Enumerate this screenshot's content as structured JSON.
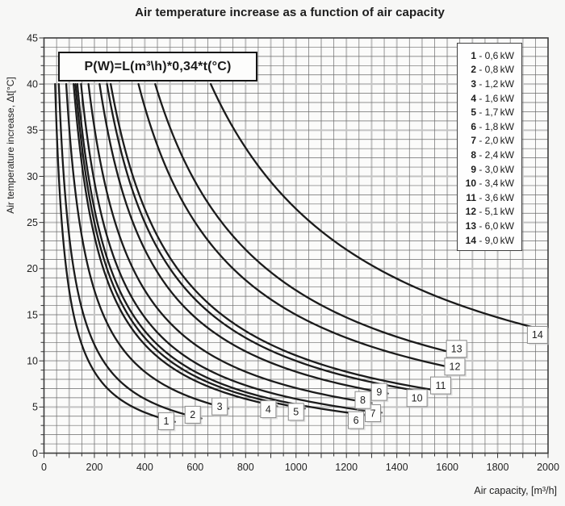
{
  "chart_data": {
    "type": "line",
    "title": "Air temperature increase as a function of air capacity",
    "formula": "P(W)=L(m³\\h)*0,34*t(°C)",
    "xlabel": "Air capacity, [m³/h]",
    "ylabel": "Air temperature increase, Δt[°C]",
    "xlim": [
      0,
      2000
    ],
    "ylim": [
      0,
      45
    ],
    "x_minor_step": 50,
    "x_major_step": 100,
    "x_label_step": 200,
    "y_minor_step": 1,
    "y_major_step": 5,
    "y_label_step": 5,
    "coefficient": 0.34,
    "curve_top_t": 40,
    "legend_unit": "kW",
    "legend_separator": " - ",
    "series": [
      {
        "n": 1,
        "kw_label": "0,6",
        "watts": 600,
        "end_L": 485
      },
      {
        "n": 2,
        "kw_label": "0,8",
        "watts": 800,
        "end_L": 590
      },
      {
        "n": 3,
        "kw_label": "1,2",
        "watts": 1200,
        "end_L": 697
      },
      {
        "n": 4,
        "kw_label": "1,6",
        "watts": 1600,
        "end_L": 890
      },
      {
        "n": 5,
        "kw_label": "1,7",
        "watts": 1700,
        "end_L": 1000
      },
      {
        "n": 6,
        "kw_label": "1,8",
        "watts": 1800,
        "end_L": 1238
      },
      {
        "n": 7,
        "kw_label": "2,0",
        "watts": 2000,
        "end_L": 1305
      },
      {
        "n": 8,
        "kw_label": "2,4",
        "watts": 2400,
        "end_L": 1265
      },
      {
        "n": 9,
        "kw_label": "3,0",
        "watts": 3000,
        "end_L": 1330
      },
      {
        "n": 10,
        "kw_label": "3,4",
        "watts": 3400,
        "end_L": 1480
      },
      {
        "n": 11,
        "kw_label": "3,6",
        "watts": 3600,
        "end_L": 1574
      },
      {
        "n": 12,
        "kw_label": "5,1",
        "watts": 5100,
        "end_L": 1630
      },
      {
        "n": 13,
        "kw_label": "6,0",
        "watts": 6000,
        "end_L": 1637
      },
      {
        "n": 14,
        "kw_label": "9,0",
        "watts": 9000,
        "end_L": 1958
      }
    ]
  }
}
